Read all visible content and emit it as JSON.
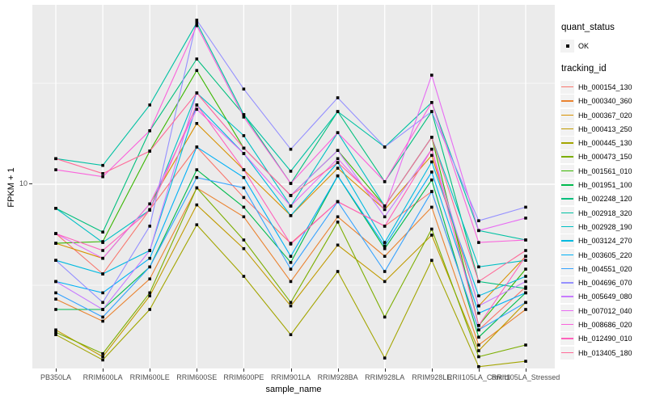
{
  "figure": {
    "background": "#FFFFFF",
    "panel_background": "#EBEBEB",
    "gridline_color": "#FFFFFF",
    "point_color": "#000000",
    "axis_text_color": "#4D4D4D"
  },
  "chart_data": {
    "type": "line",
    "title": "",
    "xlabel": "sample_name",
    "ylabel": "FPKM + 1",
    "x_categories": [
      "PB350LA",
      "RRIM600LA",
      "RRIM600LE",
      "RRIM600SE",
      "RRIM600PE",
      "RRIM901LA",
      "RRIM928BA",
      "RRIM928LA",
      "RRIM928LE",
      "RRII105LA_Control",
      "RRII105LA_Stressed"
    ],
    "y_axis": {
      "scale": "log10",
      "tick_labels": [
        "10"
      ],
      "tick_values": [
        10
      ],
      "minor_tick_values": [
        3.162,
        31.62
      ],
      "ylim": [
        1.225,
        77.3
      ]
    },
    "legend": {
      "position": "right",
      "quant_status_title": "quant_status",
      "quant_status_items": [
        {
          "label": "OK",
          "symbol": "point",
          "color": "#000000"
        }
      ],
      "tracking_id_title": "tracking_id"
    },
    "series": [
      {
        "name": "Hb_000154_130",
        "color": "#F8766D",
        "values": [
          5.7,
          3.6,
          7.5,
          15.3,
          8.6,
          5.1,
          8.2,
          6.2,
          9.2,
          1.9,
          3.1
        ]
      },
      {
        "name": "Hb_000340_360",
        "color": "#EA8331",
        "values": [
          2.7,
          2.1,
          3.4,
          9.6,
          6.9,
          3.3,
          6.9,
          4.4,
          7.7,
          1.6,
          2.4
        ]
      },
      {
        "name": "Hb_000367_020",
        "color": "#D89000",
        "values": [
          5.1,
          4.3,
          8.0,
          20.0,
          11.8,
          7.0,
          12.0,
          7.5,
          13.9,
          2.5,
          4.4
        ]
      },
      {
        "name": "Hb_000413_250",
        "color": "#C09B00",
        "values": [
          1.9,
          1.4,
          2.8,
          7.9,
          4.8,
          2.5,
          5.0,
          3.3,
          5.6,
          1.5,
          2.6
        ]
      },
      {
        "name": "Hb_000445_130",
        "color": "#A3A500",
        "values": [
          1.8,
          1.35,
          2.4,
          6.3,
          3.5,
          1.8,
          3.7,
          1.38,
          4.2,
          1.25,
          1.33
        ]
      },
      {
        "name": "Hb_000473_150",
        "color": "#7CAE00",
        "values": [
          1.85,
          1.45,
          2.9,
          9.6,
          5.3,
          2.6,
          6.5,
          2.2,
          6.0,
          1.4,
          1.6
        ]
      },
      {
        "name": "Hb_001561_010",
        "color": "#39B600",
        "values": [
          5.1,
          5.2,
          14.6,
          36.6,
          15.1,
          8.8,
          14.7,
          7.8,
          17.1,
          2.0,
          3.8
        ]
      },
      {
        "name": "Hb_001951_100",
        "color": "#00BB4E",
        "values": [
          2.4,
          2.4,
          3.9,
          11.8,
          7.7,
          4.1,
          11.0,
          4.8,
          10.5,
          1.75,
          2.9
        ]
      },
      {
        "name": "Hb_002248_120",
        "color": "#00BF7D",
        "values": [
          7.6,
          5.8,
          18.4,
          41.7,
          22.1,
          10.1,
          22.9,
          10.3,
          22.9,
          3.3,
          3.05
        ]
      },
      {
        "name": "Hb_002918_320",
        "color": "#00C1A3",
        "values": [
          13.4,
          12.4,
          24.7,
          63.0,
          22.1,
          11.6,
          22.9,
          15.3,
          25.4,
          5.9,
          5.3
        ]
      },
      {
        "name": "Hb_002928_190",
        "color": "#00BFC4",
        "values": [
          7.6,
          5.15,
          7.45,
          28.3,
          17.4,
          7.8,
          18.0,
          7.8,
          17.1,
          3.9,
          4.2
        ]
      },
      {
        "name": "Hb_003124_270",
        "color": "#00BAE0",
        "values": [
          4.2,
          3.6,
          4.7,
          24.7,
          14.2,
          7.0,
          12.8,
          5.15,
          12.9,
          2.8,
          3.5
        ]
      },
      {
        "name": "Hb_003605_220",
        "color": "#00B0F6",
        "values": [
          3.3,
          2.9,
          4.3,
          15.3,
          10.8,
          4.4,
          11.0,
          4.95,
          11.5,
          2.3,
          2.9
        ]
      },
      {
        "name": "Hb_004551_020",
        "color": "#35A2FF",
        "values": [
          2.9,
          2.2,
          3.9,
          10.8,
          9.6,
          3.8,
          8.2,
          3.7,
          9.2,
          1.9,
          2.6
        ]
      },
      {
        "name": "Hb_004696_070",
        "color": "#9590FF",
        "values": [
          4.2,
          2.6,
          6.2,
          64.9,
          29.6,
          14.9,
          26.8,
          15.3,
          22.9,
          6.6,
          7.7
        ]
      },
      {
        "name": "Hb_005649_080",
        "color": "#C77CFF",
        "values": [
          3.3,
          2.4,
          4.7,
          28.3,
          15.1,
          8.8,
          14.7,
          6.9,
          14.9,
          2.5,
          3.3
        ]
      },
      {
        "name": "Hb_007012_040",
        "color": "#E76BF3",
        "values": [
          5.7,
          4.3,
          8.0,
          23.5,
          14.2,
          7.8,
          13.4,
          7.5,
          34.7,
          5.9,
          6.8
        ]
      },
      {
        "name": "Hb_008686_020",
        "color": "#FA62DB",
        "values": [
          11.8,
          10.9,
          18.4,
          61.0,
          21.5,
          10.1,
          18.0,
          10.3,
          25.4,
          5.15,
          5.3
        ]
      },
      {
        "name": "Hb_012490_010",
        "color": "#FF62BC",
        "values": [
          5.7,
          4.7,
          7.45,
          24.7,
          11.8,
          5.06,
          8.2,
          6.2,
          14.9,
          2.0,
          4.4
        ]
      },
      {
        "name": "Hb_013405_180",
        "color": "#FF6A98",
        "values": [
          13.4,
          11.3,
          14.6,
          28.3,
          15.1,
          8.8,
          12.8,
          7.8,
          17.1,
          3.3,
          4.7
        ]
      }
    ]
  }
}
